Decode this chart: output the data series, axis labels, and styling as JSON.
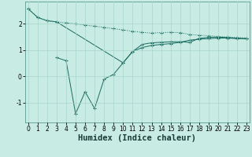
{
  "xlabel": "Humidex (Indice chaleur)",
  "bg_color": "#c8ece4",
  "line_color": "#1a6b60",
  "grid_color": "#a8d4cc",
  "line1_x": [
    0,
    1,
    2,
    3,
    4,
    5,
    6,
    7,
    8,
    9,
    10,
    11,
    12,
    13,
    14,
    15,
    16,
    17,
    18,
    19,
    20,
    21,
    22,
    23
  ],
  "line1_y": [
    2.58,
    2.25,
    2.12,
    2.08,
    2.04,
    2.0,
    1.96,
    1.91,
    1.87,
    1.82,
    1.77,
    1.72,
    1.68,
    1.65,
    1.67,
    1.68,
    1.67,
    1.6,
    1.57,
    1.55,
    1.52,
    1.5,
    1.48,
    1.46
  ],
  "line2_x": [
    3,
    4,
    5,
    6,
    7,
    8,
    9,
    10,
    11,
    12,
    13,
    14,
    15,
    16,
    17,
    18,
    19,
    20,
    21,
    22,
    23
  ],
  "line2_y": [
    0.72,
    0.6,
    -1.42,
    -0.58,
    -1.22,
    -0.1,
    0.08,
    0.52,
    0.95,
    1.22,
    1.28,
    1.3,
    1.32,
    1.32,
    1.3,
    1.45,
    1.49,
    1.5,
    1.48,
    1.46,
    1.44
  ],
  "line3_x": [
    0,
    1,
    2,
    3,
    10,
    11,
    12,
    13,
    14,
    15,
    16,
    17,
    18,
    19,
    20,
    21,
    22,
    23
  ],
  "line3_y": [
    2.58,
    2.25,
    2.12,
    2.08,
    0.52,
    0.95,
    1.1,
    1.18,
    1.22,
    1.25,
    1.3,
    1.38,
    1.42,
    1.44,
    1.46,
    1.46,
    1.44,
    1.44
  ],
  "xlim": [
    -0.3,
    23.3
  ],
  "ylim": [
    -1.75,
    2.85
  ],
  "yticks": [
    -1,
    0,
    1,
    2
  ],
  "xticks": [
    0,
    1,
    2,
    3,
    4,
    5,
    6,
    7,
    8,
    9,
    10,
    11,
    12,
    13,
    14,
    15,
    16,
    17,
    18,
    19,
    20,
    21,
    22,
    23
  ],
  "tick_fontsize": 5.5,
  "xlabel_fontsize": 7.5
}
